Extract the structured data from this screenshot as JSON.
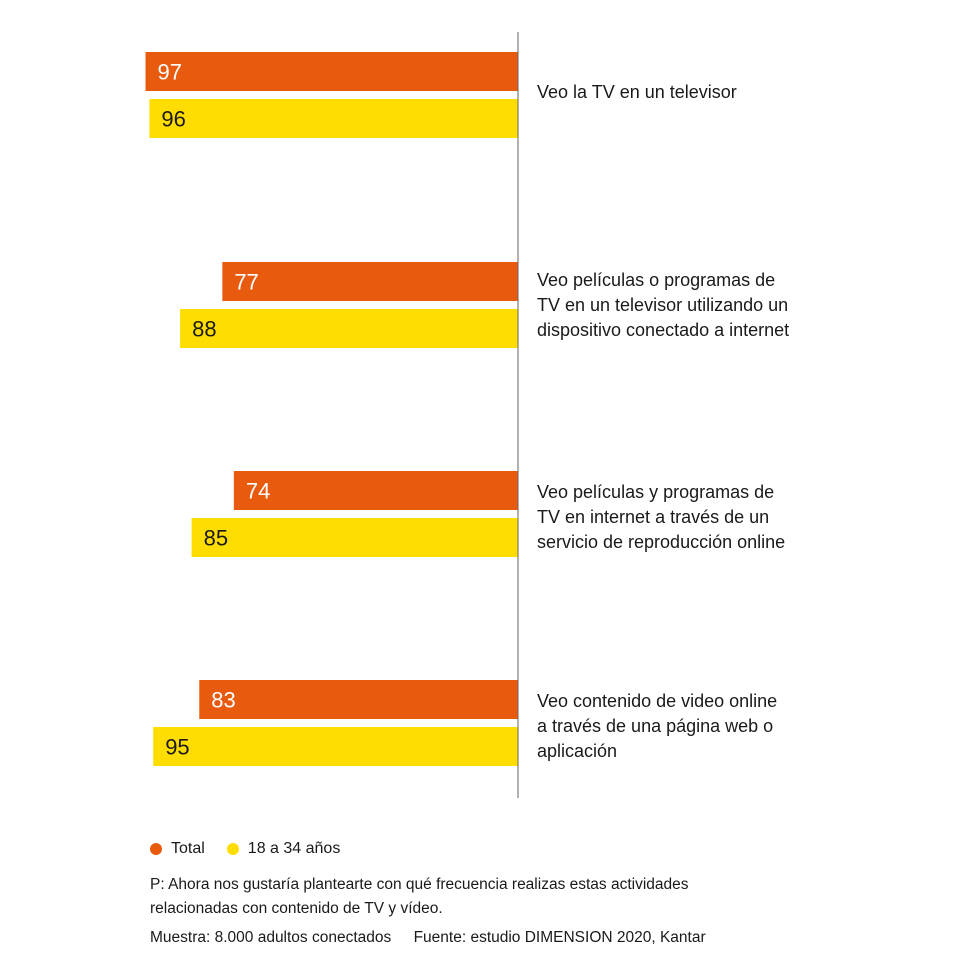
{
  "chart_data": {
    "type": "bar",
    "orientation": "horizontal",
    "direction": "bars extend leftward from a central baseline",
    "categories": [
      "Veo la TV en un televisor",
      "Veo películas o programas de\nTV en un televisor utilizando un\ndispositivo conectado a internet",
      "Veo películas y programas de\nTV en internet a través de un\nservicio de reproducción online",
      "Veo contenido de video online\na través de una página web o\naplicación"
    ],
    "series": [
      {
        "name": "Total",
        "color": "#E85B0F",
        "values": [
          97,
          77,
          74,
          83
        ]
      },
      {
        "name": "18 a 34 años",
        "color": "#FFDD00",
        "values": [
          96,
          88,
          85,
          95
        ]
      }
    ],
    "xlim": [
      0,
      100
    ],
    "grid": false,
    "legend_position": "bottom-left",
    "data_labels": true
  },
  "note_lines": [
    "P: Ahora nos gustaría plantearte con qué frecuencia realizas estas actividades",
    "relacionadas con contenido de TV y vídeo."
  ],
  "footer": {
    "sample": "Muestra: 8.000 adultos conectados",
    "source": "Fuente: estudio DIMENSION 2020, Kantar"
  },
  "colors": {
    "baseline": "#666666",
    "label_text": "#1a1a1a"
  }
}
